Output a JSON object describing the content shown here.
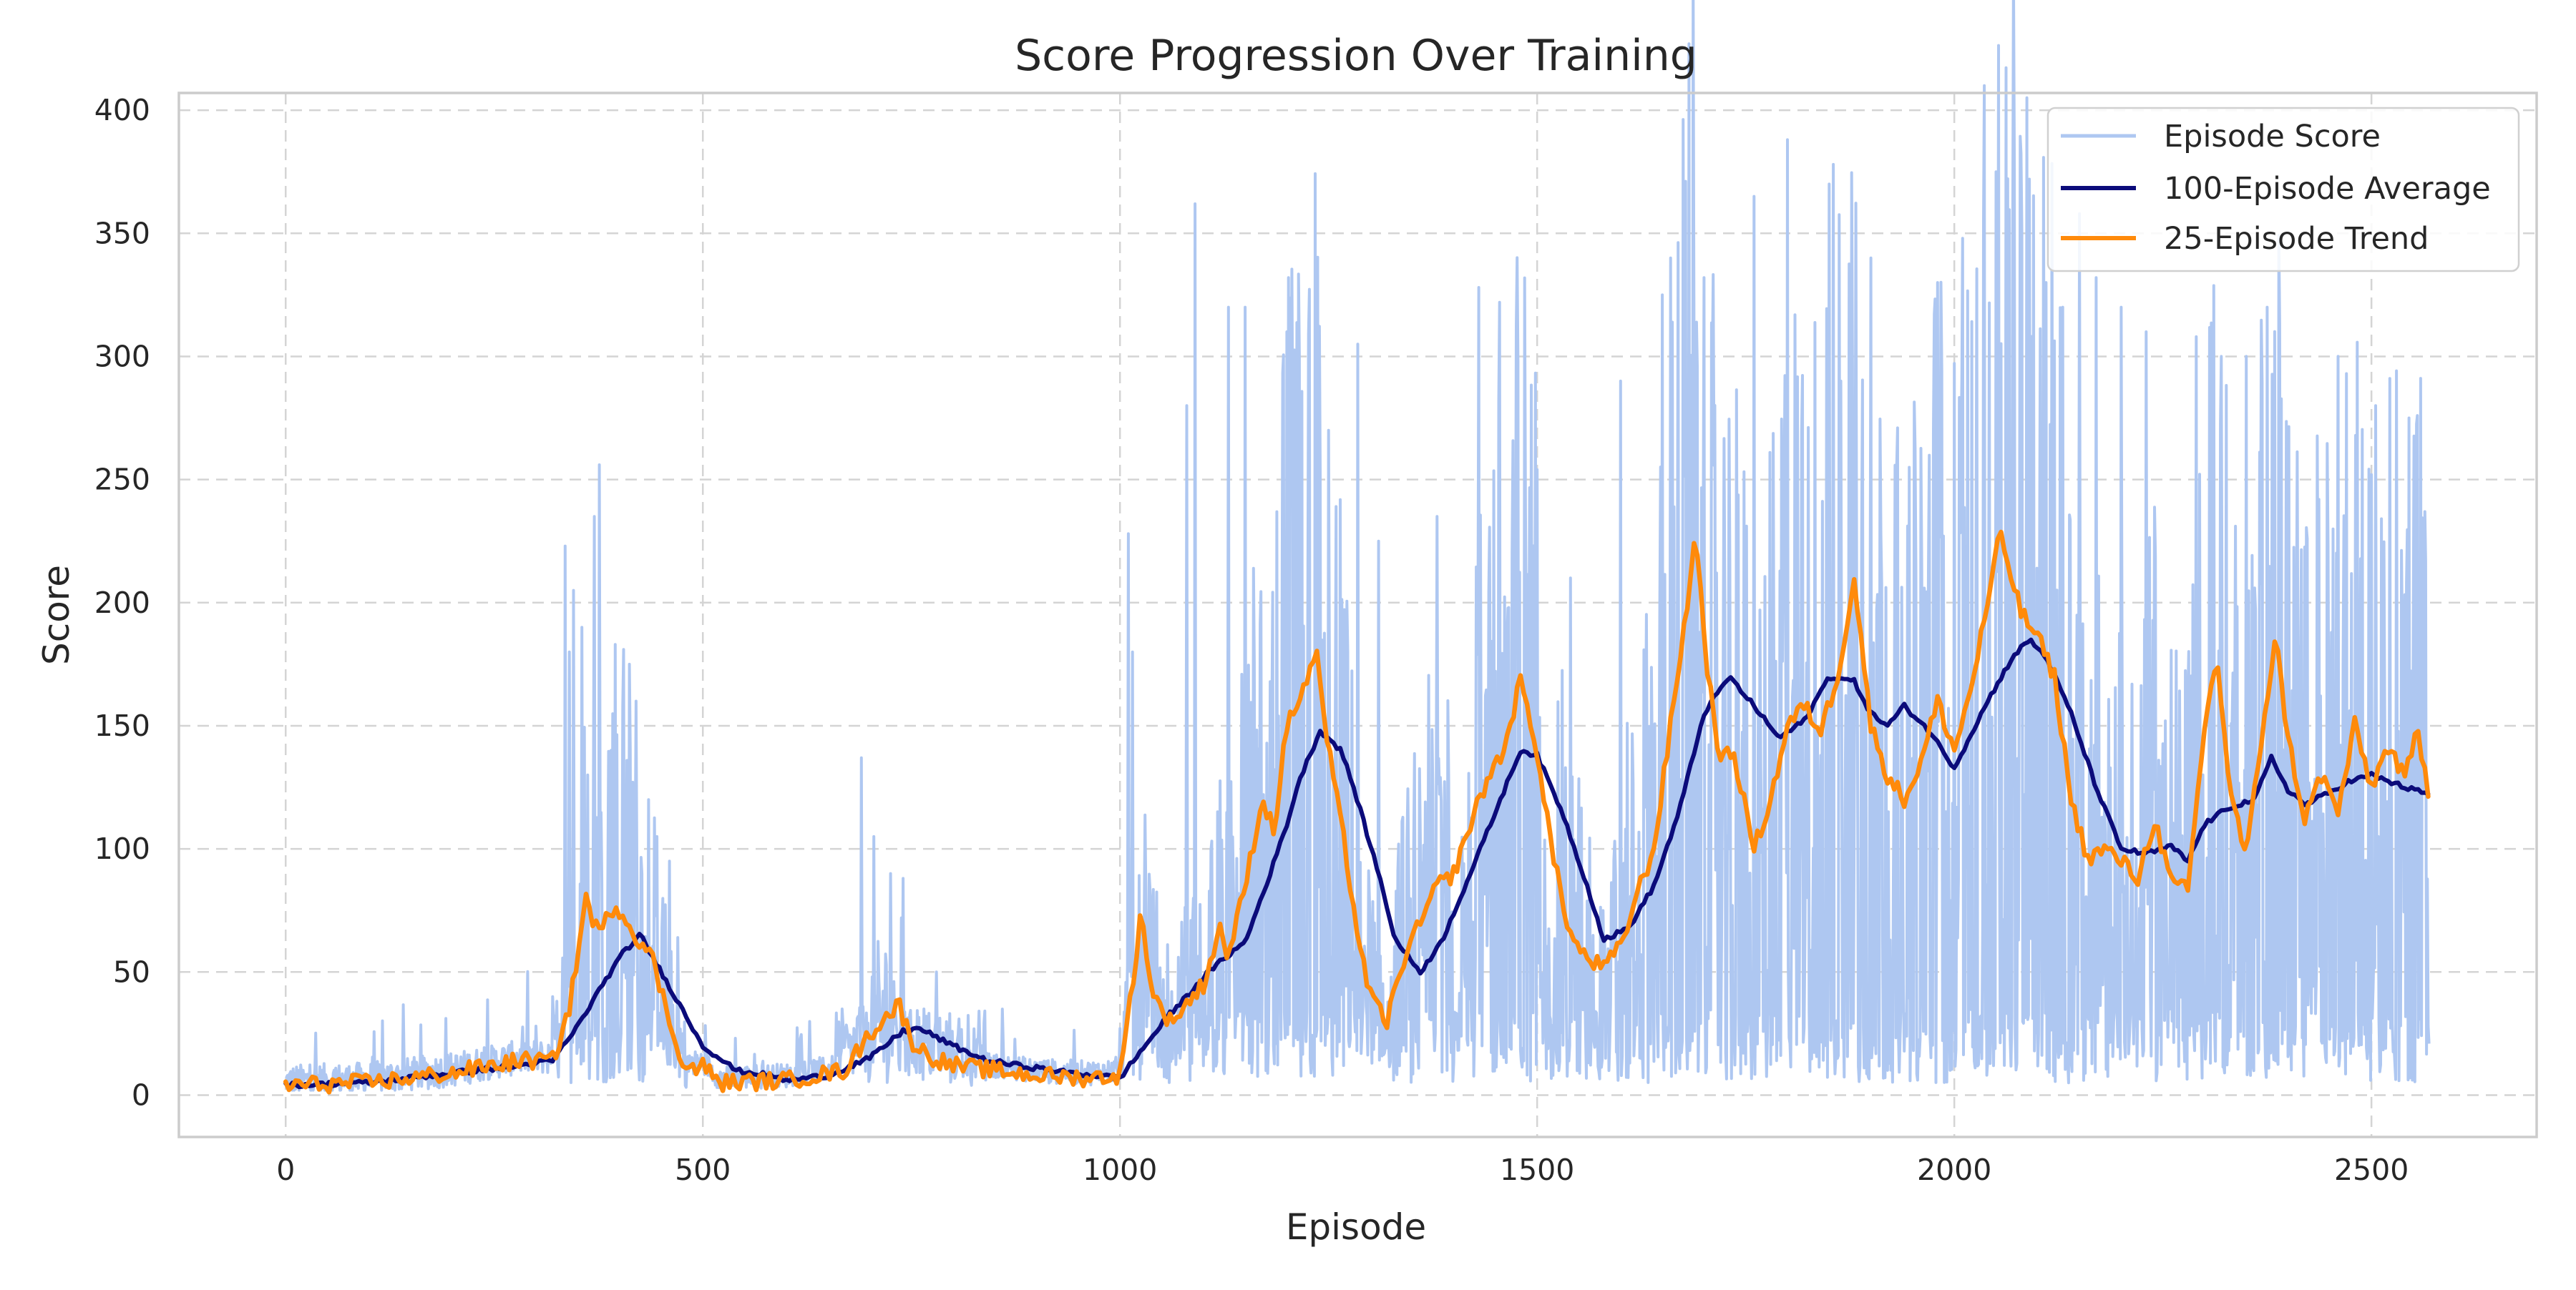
{
  "chart_data": {
    "type": "line",
    "title": "Score Progression Over Training",
    "xlabel": "Episode",
    "ylabel": "Score",
    "xlim": [
      -128,
      2698
    ],
    "ylim": [
      -17,
      407
    ],
    "xticks": [
      0,
      500,
      1000,
      1500,
      2000,
      2500
    ],
    "yticks": [
      0,
      50,
      100,
      150,
      200,
      250,
      300,
      350,
      400
    ],
    "grid": true,
    "legend_position": "top-right",
    "episode_count": 2570,
    "colors": {
      "episode_score": "#aec7f1",
      "average": "#0b0b7a",
      "trend": "#ff8a0a"
    },
    "series": [
      {
        "name": "Episode Score",
        "kind": "raw",
        "spikes": [
          {
            "x": 300,
            "y": 28
          },
          {
            "x": 320,
            "y": 40
          },
          {
            "x": 335,
            "y": 223
          },
          {
            "x": 340,
            "y": 180
          },
          {
            "x": 345,
            "y": 205
          },
          {
            "x": 355,
            "y": 190
          },
          {
            "x": 362,
            "y": 130
          },
          {
            "x": 370,
            "y": 235
          },
          {
            "x": 376,
            "y": 256
          },
          {
            "x": 390,
            "y": 140
          },
          {
            "x": 395,
            "y": 183
          },
          {
            "x": 405,
            "y": 181
          },
          {
            "x": 412,
            "y": 175
          },
          {
            "x": 420,
            "y": 160
          },
          {
            "x": 435,
            "y": 120
          },
          {
            "x": 445,
            "y": 105
          },
          {
            "x": 460,
            "y": 95
          },
          {
            "x": 470,
            "y": 64
          },
          {
            "x": 690,
            "y": 137
          },
          {
            "x": 705,
            "y": 105
          },
          {
            "x": 725,
            "y": 90
          },
          {
            "x": 740,
            "y": 88
          },
          {
            "x": 780,
            "y": 50
          },
          {
            "x": 1010,
            "y": 228
          },
          {
            "x": 1015,
            "y": 180
          },
          {
            "x": 1080,
            "y": 280
          },
          {
            "x": 1090,
            "y": 362
          },
          {
            "x": 1130,
            "y": 320
          },
          {
            "x": 1150,
            "y": 320
          },
          {
            "x": 1200,
            "y": 310
          },
          {
            "x": 1215,
            "y": 300
          },
          {
            "x": 1250,
            "y": 270
          },
          {
            "x": 1285,
            "y": 305
          },
          {
            "x": 1310,
            "y": 225
          },
          {
            "x": 1380,
            "y": 235
          },
          {
            "x": 1430,
            "y": 328
          },
          {
            "x": 1455,
            "y": 322
          },
          {
            "x": 1475,
            "y": 312
          },
          {
            "x": 1500,
            "y": 254
          },
          {
            "x": 1540,
            "y": 210
          },
          {
            "x": 1600,
            "y": 290
          },
          {
            "x": 1650,
            "y": 325
          },
          {
            "x": 1660,
            "y": 340
          },
          {
            "x": 1700,
            "y": 332
          },
          {
            "x": 1760,
            "y": 365
          },
          {
            "x": 1800,
            "y": 388
          },
          {
            "x": 1850,
            "y": 370
          },
          {
            "x": 1855,
            "y": 378
          },
          {
            "x": 1900,
            "y": 340
          },
          {
            "x": 1980,
            "y": 330
          },
          {
            "x": 2010,
            "y": 348
          },
          {
            "x": 2035,
            "y": 355
          },
          {
            "x": 2050,
            "y": 375
          },
          {
            "x": 2070,
            "y": 348
          },
          {
            "x": 2090,
            "y": 372
          },
          {
            "x": 2110,
            "y": 330
          },
          {
            "x": 2130,
            "y": 320
          },
          {
            "x": 2150,
            "y": 358
          },
          {
            "x": 2170,
            "y": 332
          },
          {
            "x": 2200,
            "y": 320
          },
          {
            "x": 2230,
            "y": 310
          },
          {
            "x": 2290,
            "y": 308
          },
          {
            "x": 2320,
            "y": 300
          },
          {
            "x": 2350,
            "y": 300
          },
          {
            "x": 2375,
            "y": 320
          },
          {
            "x": 2390,
            "y": 313
          },
          {
            "x": 2460,
            "y": 300
          },
          {
            "x": 2470,
            "y": 293
          },
          {
            "x": 2505,
            "y": 280
          },
          {
            "x": 2545,
            "y": 275
          },
          {
            "x": 2555,
            "y": 276
          },
          {
            "x": 2565,
            "y": 217
          }
        ]
      },
      {
        "name": "100-Episode Average",
        "kind": "moving_average_100",
        "points": [
          [
            0,
            4
          ],
          [
            100,
            5
          ],
          [
            200,
            9
          ],
          [
            280,
            12
          ],
          [
            320,
            14
          ],
          [
            350,
            28
          ],
          [
            380,
            45
          ],
          [
            405,
            58
          ],
          [
            425,
            65
          ],
          [
            450,
            50
          ],
          [
            470,
            38
          ],
          [
            500,
            20
          ],
          [
            540,
            10
          ],
          [
            580,
            8
          ],
          [
            600,
            6
          ],
          [
            650,
            8
          ],
          [
            700,
            15
          ],
          [
            740,
            26
          ],
          [
            760,
            27
          ],
          [
            800,
            20
          ],
          [
            840,
            14
          ],
          [
            880,
            12
          ],
          [
            940,
            9
          ],
          [
            1000,
            7
          ],
          [
            1030,
            20
          ],
          [
            1060,
            33
          ],
          [
            1080,
            40
          ],
          [
            1100,
            48
          ],
          [
            1130,
            57
          ],
          [
            1150,
            62
          ],
          [
            1180,
            90
          ],
          [
            1200,
            110
          ],
          [
            1215,
            128
          ],
          [
            1240,
            148
          ],
          [
            1265,
            140
          ],
          [
            1280,
            125
          ],
          [
            1310,
            90
          ],
          [
            1330,
            63
          ],
          [
            1360,
            50
          ],
          [
            1385,
            62
          ],
          [
            1420,
            90
          ],
          [
            1450,
            115
          ],
          [
            1480,
            140
          ],
          [
            1500,
            138
          ],
          [
            1530,
            115
          ],
          [
            1560,
            85
          ],
          [
            1580,
            63
          ],
          [
            1610,
            68
          ],
          [
            1640,
            85
          ],
          [
            1670,
            115
          ],
          [
            1700,
            155
          ],
          [
            1730,
            170
          ],
          [
            1760,
            158
          ],
          [
            1790,
            145
          ],
          [
            1820,
            152
          ],
          [
            1850,
            170
          ],
          [
            1880,
            168
          ],
          [
            1900,
            155
          ],
          [
            1920,
            150
          ],
          [
            1940,
            158
          ],
          [
            1970,
            148
          ],
          [
            2000,
            133
          ],
          [
            2040,
            160
          ],
          [
            2070,
            178
          ],
          [
            2090,
            185
          ],
          [
            2110,
            178
          ],
          [
            2140,
            155
          ],
          [
            2170,
            125
          ],
          [
            2200,
            100
          ],
          [
            2230,
            98
          ],
          [
            2260,
            101
          ],
          [
            2280,
            95
          ],
          [
            2300,
            110
          ],
          [
            2330,
            117
          ],
          [
            2360,
            120
          ],
          [
            2380,
            137
          ],
          [
            2400,
            124
          ],
          [
            2420,
            118
          ],
          [
            2445,
            122
          ],
          [
            2470,
            127
          ],
          [
            2500,
            130
          ],
          [
            2540,
            125
          ],
          [
            2570,
            122
          ]
        ]
      },
      {
        "name": "25-Episode Trend",
        "kind": "moving_average_25",
        "points": [
          [
            0,
            4
          ],
          [
            100,
            5
          ],
          [
            200,
            9
          ],
          [
            280,
            14
          ],
          [
            320,
            14
          ],
          [
            340,
            35
          ],
          [
            360,
            80
          ],
          [
            375,
            65
          ],
          [
            395,
            78
          ],
          [
            410,
            70
          ],
          [
            440,
            55
          ],
          [
            460,
            30
          ],
          [
            480,
            10
          ],
          [
            500,
            12
          ],
          [
            520,
            5
          ],
          [
            600,
            6
          ],
          [
            670,
            10
          ],
          [
            700,
            25
          ],
          [
            720,
            32
          ],
          [
            735,
            37
          ],
          [
            750,
            22
          ],
          [
            770,
            16
          ],
          [
            800,
            12
          ],
          [
            850,
            10
          ],
          [
            900,
            8
          ],
          [
            960,
            7
          ],
          [
            1000,
            8
          ],
          [
            1015,
            45
          ],
          [
            1025,
            74
          ],
          [
            1040,
            40
          ],
          [
            1060,
            30
          ],
          [
            1075,
            35
          ],
          [
            1100,
            45
          ],
          [
            1120,
            68
          ],
          [
            1130,
            56
          ],
          [
            1150,
            85
          ],
          [
            1170,
            120
          ],
          [
            1185,
            108
          ],
          [
            1200,
            150
          ],
          [
            1220,
            165
          ],
          [
            1235,
            180
          ],
          [
            1250,
            140
          ],
          [
            1270,
            100
          ],
          [
            1285,
            65
          ],
          [
            1300,
            40
          ],
          [
            1320,
            30
          ],
          [
            1340,
            55
          ],
          [
            1360,
            70
          ],
          [
            1380,
            85
          ],
          [
            1400,
            90
          ],
          [
            1420,
            110
          ],
          [
            1440,
            128
          ],
          [
            1460,
            140
          ],
          [
            1480,
            168
          ],
          [
            1500,
            140
          ],
          [
            1520,
            95
          ],
          [
            1540,
            65
          ],
          [
            1560,
            55
          ],
          [
            1580,
            52
          ],
          [
            1600,
            60
          ],
          [
            1620,
            82
          ],
          [
            1640,
            100
          ],
          [
            1660,
            150
          ],
          [
            1680,
            200
          ],
          [
            1690,
            228
          ],
          [
            1705,
            170
          ],
          [
            1720,
            135
          ],
          [
            1735,
            140
          ],
          [
            1760,
            100
          ],
          [
            1780,
            120
          ],
          [
            1800,
            150
          ],
          [
            1820,
            158
          ],
          [
            1840,
            148
          ],
          [
            1860,
            170
          ],
          [
            1880,
            210
          ],
          [
            1900,
            150
          ],
          [
            1920,
            130
          ],
          [
            1940,
            120
          ],
          [
            1960,
            135
          ],
          [
            1980,
            160
          ],
          [
            2000,
            140
          ],
          [
            2020,
            165
          ],
          [
            2040,
            200
          ],
          [
            2055,
            228
          ],
          [
            2080,
            196
          ],
          [
            2100,
            186
          ],
          [
            2120,
            170
          ],
          [
            2140,
            120
          ],
          [
            2160,
            96
          ],
          [
            2180,
            100
          ],
          [
            2200,
            95
          ],
          [
            2220,
            88
          ],
          [
            2240,
            112
          ],
          [
            2260,
            86
          ],
          [
            2280,
            83
          ],
          [
            2300,
            150
          ],
          [
            2315,
            178
          ],
          [
            2330,
            125
          ],
          [
            2350,
            96
          ],
          [
            2370,
            150
          ],
          [
            2385,
            186
          ],
          [
            2400,
            145
          ],
          [
            2420,
            112
          ],
          [
            2440,
            130
          ],
          [
            2460,
            115
          ],
          [
            2480,
            150
          ],
          [
            2500,
            125
          ],
          [
            2520,
            142
          ],
          [
            2540,
            128
          ],
          [
            2555,
            148
          ],
          [
            2570,
            121
          ]
        ]
      }
    ]
  }
}
